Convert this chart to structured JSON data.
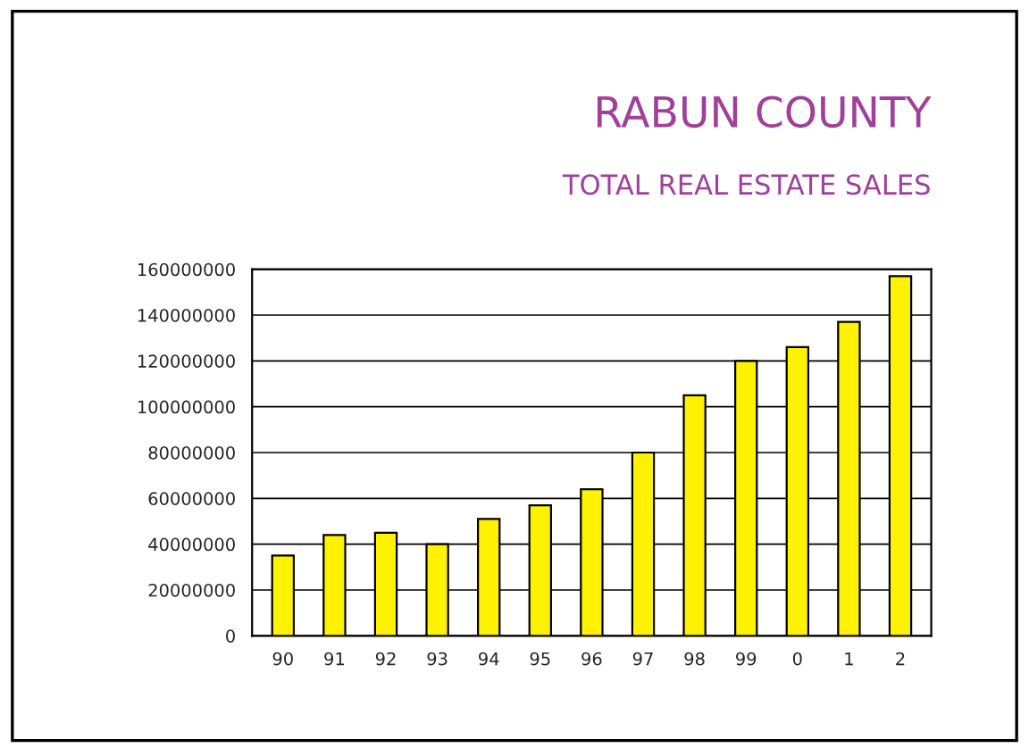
{
  "chart_data": {
    "type": "bar",
    "title": "RABUN COUNTY",
    "subtitle": "TOTAL REAL ESTATE SALES",
    "categories": [
      "90",
      "91",
      "92",
      "93",
      "94",
      "95",
      "96",
      "97",
      "98",
      "99",
      "0",
      "1",
      "2"
    ],
    "values": [
      35000000,
      44000000,
      45000000,
      40000000,
      51000000,
      57000000,
      64000000,
      80000000,
      105000000,
      120000000,
      126000000,
      137000000,
      157000000
    ],
    "color": "#fff200",
    "ylim": [
      0,
      160000000
    ],
    "yticks": [
      0,
      20000000,
      40000000,
      60000000,
      80000000,
      100000000,
      120000000,
      140000000,
      160000000
    ],
    "grid": "y"
  }
}
